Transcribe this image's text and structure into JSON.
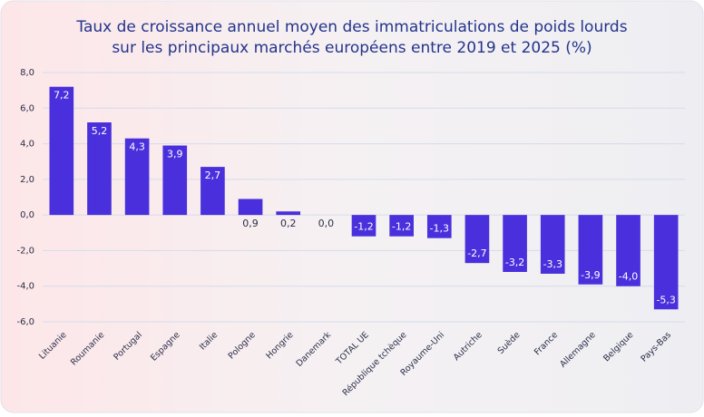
{
  "chart_data": {
    "type": "bar",
    "title": [
      "Taux de croissance annuel moyen des immatriculations de poids lourds",
      "sur les principaux marchés européens entre 2019 et 2025 (%)"
    ],
    "categories": [
      "Lituanie",
      "Roumanie",
      "Portugal",
      "Espagne",
      "Italie",
      "Pologne",
      "Hongrie",
      "Danemark",
      "TOTAL UE",
      "République tchèque",
      "Royaume-Uni",
      "Autriche",
      "Suède",
      "France",
      "Allemagne",
      "Belgique",
      "Pays-Bas"
    ],
    "values": [
      7.2,
      5.2,
      4.3,
      3.9,
      2.7,
      0.9,
      0.2,
      0.0,
      -1.2,
      -1.2,
      -1.3,
      -2.7,
      -3.2,
      -3.3,
      -3.9,
      -4.0,
      -5.3
    ],
    "value_labels": [
      "7,2",
      "5,2",
      "4,3",
      "3,9",
      "2,7",
      "0,9",
      "0,2",
      "0,0",
      "-1,2",
      "-1,2",
      "-1,3",
      "-2,7",
      "-3,2",
      "-3,3",
      "-3,9",
      "-4,0",
      "-5,3"
    ],
    "color": "#4a30dc",
    "ylim": [
      -6,
      8
    ],
    "yticks": [
      {
        "value": -6,
        "label": "-6,0"
      },
      {
        "value": -4,
        "label": "-4,0"
      },
      {
        "value": -2,
        "label": "-2,0"
      },
      {
        "value": 0,
        "label": "0,0"
      },
      {
        "value": 2,
        "label": "2,0"
      },
      {
        "value": 4,
        "label": "4,0"
      },
      {
        "value": 6,
        "label": "6,0"
      },
      {
        "value": 8,
        "label": "8,0"
      }
    ],
    "grid": true
  }
}
